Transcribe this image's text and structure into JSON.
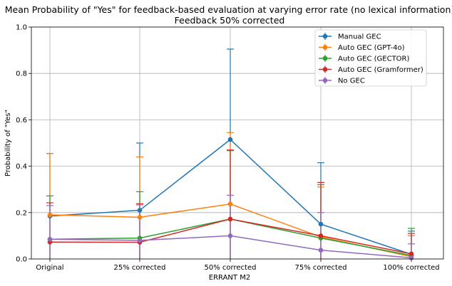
{
  "chart_data": {
    "type": "line",
    "title": "Mean Probability of \"Yes\" for feedback-based evaluation at varying error rate (no lexical information)",
    "subtitle": "Feedback 50% corrected",
    "xlabel": "ERRANT M2",
    "ylabel": "Probability of \"Yes\"",
    "categories": [
      "Original",
      "25% corrected",
      "50% corrected",
      "75% corrected",
      "100% corrected"
    ],
    "ylim": [
      0,
      1.0
    ],
    "yticks": [
      "0.0",
      "0.2",
      "0.4",
      "0.6",
      "0.8",
      "1.0"
    ],
    "grid": true,
    "legend_position": "top-right",
    "error_bars": "one-sided",
    "series": [
      {
        "name": "Manual GEC",
        "color": "#1f77b4",
        "values": [
          0.185,
          0.21,
          0.515,
          0.15,
          0.02
        ],
        "errors": [
          0.455,
          0.5,
          0.905,
          0.415,
          0.12
        ]
      },
      {
        "name": "Auto GEC (GPT-4o)",
        "color": "#ff7f0e",
        "values": [
          0.19,
          0.18,
          0.237,
          0.095,
          0.01
        ],
        "errors": [
          0.455,
          0.44,
          0.545,
          0.31,
          0.1
        ]
      },
      {
        "name": "Auto GEC (GECTOR)",
        "color": "#2ca02c",
        "values": [
          0.085,
          0.09,
          0.172,
          0.09,
          0.015
        ],
        "errors": [
          0.272,
          0.29,
          0.467,
          0.32,
          0.132
        ]
      },
      {
        "name": "Auto GEC (Gramformer)",
        "color": "#d62728",
        "values": [
          0.073,
          0.072,
          0.172,
          0.1,
          0.022
        ],
        "errors": [
          0.242,
          0.238,
          0.47,
          0.33,
          0.11
        ]
      },
      {
        "name": "No GEC",
        "color": "#9467bd",
        "values": [
          0.085,
          0.08,
          0.1,
          0.038,
          0.005
        ],
        "errors": [
          0.23,
          0.233,
          0.275,
          0.2,
          0.065
        ]
      }
    ]
  }
}
